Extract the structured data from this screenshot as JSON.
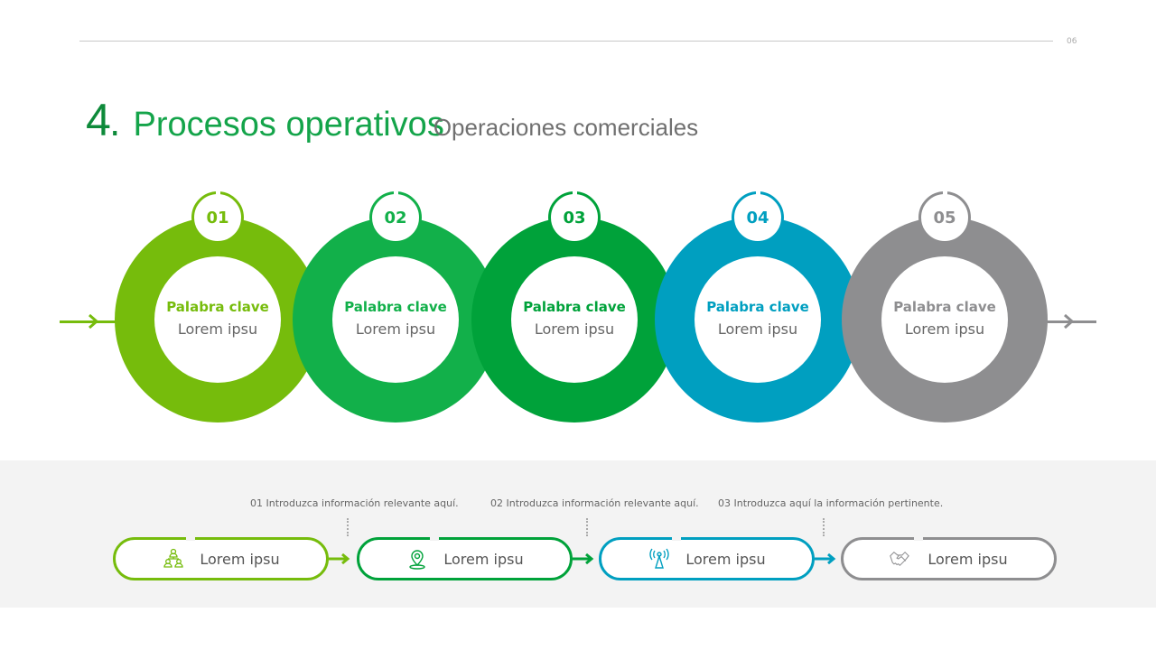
{
  "page_number": "06",
  "header": {
    "number": "4",
    "dot": ".",
    "title": "Procesos operativos",
    "subtitle": "Operaciones comerciales"
  },
  "colors": {
    "lime": "#76bc0c",
    "green": "#12b04a",
    "dark_green": "#00a23a",
    "teal": "#009fc0",
    "gray": "#8e8e90"
  },
  "steps": [
    {
      "num": "01",
      "keyword": "Palabra clave",
      "text": "Lorem ipsu",
      "color": "#76bc0c"
    },
    {
      "num": "02",
      "keyword": "Palabra clave",
      "text": "Lorem ipsu",
      "color": "#12b04a"
    },
    {
      "num": "03",
      "keyword": "Palabra clave",
      "text": "Lorem ipsu",
      "color": "#00a23a"
    },
    {
      "num": "04",
      "keyword": "Palabra clave",
      "text": "Lorem ipsu",
      "color": "#009fc0"
    },
    {
      "num": "05",
      "keyword": "Palabra clave",
      "text": "Lorem ipsu",
      "color": "#8e8e90"
    }
  ],
  "notes": [
    "01 Introduzca información relevante aquí.",
    "02 Introduzca información relevante aquí.",
    "03 Introduzca aquí la información pertinente."
  ],
  "pills": [
    {
      "label": "Lorem ipsu",
      "icon": "team-hierarchy-icon",
      "color": "#76bc0c"
    },
    {
      "label": "Lorem ipsu",
      "icon": "location-pin-icon",
      "color": "#00a23a"
    },
    {
      "label": "Lorem ipsu",
      "icon": "antenna-icon",
      "color": "#009fc0"
    },
    {
      "label": "Lorem ipsu",
      "icon": "handshake-icon",
      "color": "#8e8e90"
    }
  ]
}
